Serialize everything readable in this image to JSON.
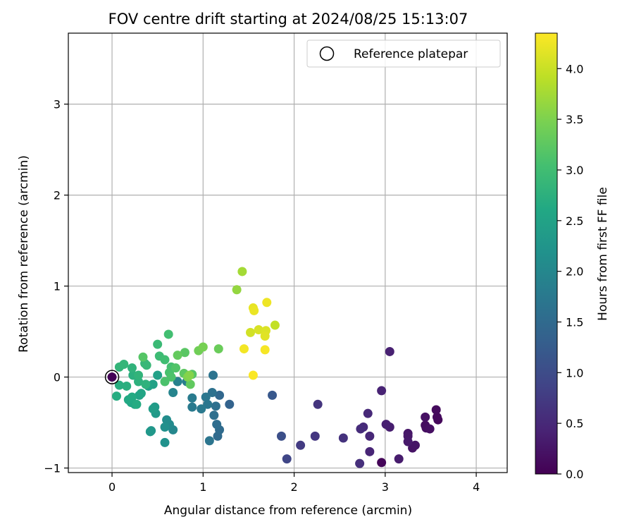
{
  "chart_data": {
    "type": "scatter",
    "title": "FOV centre drift starting at 2024/08/25 15:13:07",
    "xlabel": "Angular distance from reference (arcmin)",
    "ylabel": "Rotation from reference (arcmin)",
    "xlim": [
      -0.48,
      4.34
    ],
    "ylim": [
      -1.05,
      3.78
    ],
    "xticks": [
      0,
      1,
      2,
      3,
      4
    ],
    "yticks": [
      -1,
      0,
      1,
      2,
      3
    ],
    "xtick_labels": [
      "0",
      "1",
      "2",
      "3",
      "4"
    ],
    "ytick_labels": [
      "−1",
      "0",
      "1",
      "2",
      "3"
    ],
    "grid": true,
    "legend": {
      "placement": "top-right",
      "entries": [
        "Reference platepar"
      ]
    },
    "reference_point": {
      "x": 0,
      "y": 0,
      "marker": "open circle"
    },
    "colorbar": {
      "label": "Hours from first FF file",
      "colormap": "viridis",
      "range": [
        0.0,
        4.35
      ],
      "ticks": [
        0.0,
        0.5,
        1.0,
        1.5,
        2.0,
        2.5,
        3.0,
        3.5,
        4.0
      ],
      "tick_labels": [
        "0.0",
        "0.5",
        "1.0",
        "1.5",
        "2.0",
        "2.5",
        "3.0",
        "3.5",
        "4.0"
      ]
    },
    "points": [
      {
        "x": 0.0,
        "y": 0.0,
        "t": 0.02
      },
      {
        "x": 2.96,
        "y": -0.94,
        "t": 0.05
      },
      {
        "x": 3.58,
        "y": -0.47,
        "t": 0.08
      },
      {
        "x": 3.57,
        "y": -0.44,
        "t": 0.1
      },
      {
        "x": 3.56,
        "y": -0.36,
        "t": 0.12
      },
      {
        "x": 3.44,
        "y": -0.53,
        "t": 0.15
      },
      {
        "x": 3.45,
        "y": -0.56,
        "t": 0.16
      },
      {
        "x": 3.49,
        "y": -0.57,
        "t": 0.18
      },
      {
        "x": 3.44,
        "y": -0.44,
        "t": 0.2
      },
      {
        "x": 3.3,
        "y": -0.78,
        "t": 0.22
      },
      {
        "x": 3.33,
        "y": -0.75,
        "t": 0.24
      },
      {
        "x": 3.25,
        "y": -0.62,
        "t": 0.26
      },
      {
        "x": 3.25,
        "y": -0.65,
        "t": 0.28
      },
      {
        "x": 3.25,
        "y": -0.71,
        "t": 0.3
      },
      {
        "x": 3.15,
        "y": -0.9,
        "t": 0.33
      },
      {
        "x": 3.05,
        "y": -0.55,
        "t": 0.36
      },
      {
        "x": 3.01,
        "y": -0.52,
        "t": 0.38
      },
      {
        "x": 3.05,
        "y": 0.28,
        "t": 0.4
      },
      {
        "x": 2.96,
        "y": -0.15,
        "t": 0.42
      },
      {
        "x": 2.83,
        "y": -0.82,
        "t": 0.45
      },
      {
        "x": 2.83,
        "y": -0.65,
        "t": 0.48
      },
      {
        "x": 2.81,
        "y": -0.4,
        "t": 0.5
      },
      {
        "x": 2.76,
        "y": -0.55,
        "t": 0.52
      },
      {
        "x": 2.73,
        "y": -0.57,
        "t": 0.55
      },
      {
        "x": 2.72,
        "y": -0.95,
        "t": 0.58
      },
      {
        "x": 2.54,
        "y": -0.67,
        "t": 0.62
      },
      {
        "x": 2.26,
        "y": -0.3,
        "t": 0.66
      },
      {
        "x": 2.23,
        "y": -0.65,
        "t": 0.7
      },
      {
        "x": 2.07,
        "y": -0.75,
        "t": 0.75
      },
      {
        "x": 1.92,
        "y": -0.9,
        "t": 0.9
      },
      {
        "x": 1.86,
        "y": -0.65,
        "t": 1.05
      },
      {
        "x": 1.76,
        "y": -0.2,
        "t": 1.2
      },
      {
        "x": 1.29,
        "y": -0.3,
        "t": 1.38
      },
      {
        "x": 1.18,
        "y": -0.2,
        "t": 1.45
      },
      {
        "x": 1.16,
        "y": -0.65,
        "t": 1.5
      },
      {
        "x": 1.18,
        "y": -0.58,
        "t": 1.52
      },
      {
        "x": 1.15,
        "y": -0.52,
        "t": 1.55
      },
      {
        "x": 1.12,
        "y": -0.42,
        "t": 1.58
      },
      {
        "x": 1.14,
        "y": -0.32,
        "t": 1.6
      },
      {
        "x": 1.1,
        "y": -0.17,
        "t": 1.62
      },
      {
        "x": 1.11,
        "y": 0.02,
        "t": 1.65
      },
      {
        "x": 1.07,
        "y": -0.7,
        "t": 1.68
      },
      {
        "x": 1.05,
        "y": -0.3,
        "t": 1.7
      },
      {
        "x": 1.03,
        "y": -0.22,
        "t": 1.72
      },
      {
        "x": 0.98,
        "y": -0.35,
        "t": 1.75
      },
      {
        "x": 0.88,
        "y": -0.33,
        "t": 1.78
      },
      {
        "x": 0.88,
        "y": -0.23,
        "t": 1.8
      },
      {
        "x": 0.82,
        "y": -0.05,
        "t": 1.85
      },
      {
        "x": 0.72,
        "y": -0.05,
        "t": 1.9
      },
      {
        "x": 0.67,
        "y": -0.17,
        "t": 1.95
      },
      {
        "x": 0.67,
        "y": -0.58,
        "t": 2.0
      },
      {
        "x": 0.63,
        "y": -0.52,
        "t": 2.05
      },
      {
        "x": 0.6,
        "y": -0.47,
        "t": 2.1
      },
      {
        "x": 0.58,
        "y": -0.55,
        "t": 2.15
      },
      {
        "x": 0.58,
        "y": -0.72,
        "t": 2.2
      },
      {
        "x": 0.43,
        "y": -0.59,
        "t": 2.25
      },
      {
        "x": 0.42,
        "y": -0.6,
        "t": 2.3
      },
      {
        "x": 0.48,
        "y": -0.4,
        "t": 2.33
      },
      {
        "x": 0.47,
        "y": -0.33,
        "t": 2.36
      },
      {
        "x": 0.45,
        "y": -0.35,
        "t": 2.4
      },
      {
        "x": 0.5,
        "y": 0.02,
        "t": 2.45
      },
      {
        "x": 0.45,
        "y": -0.08,
        "t": 2.48
      },
      {
        "x": 0.4,
        "y": -0.1,
        "t": 2.5
      },
      {
        "x": 0.3,
        "y": -0.2,
        "t": 2.52
      },
      {
        "x": 0.32,
        "y": -0.18,
        "t": 2.55
      },
      {
        "x": 0.25,
        "y": -0.3,
        "t": 2.58
      },
      {
        "x": 0.21,
        "y": -0.28,
        "t": 2.6
      },
      {
        "x": 0.18,
        "y": -0.25,
        "t": 2.62
      },
      {
        "x": 0.22,
        "y": -0.22,
        "t": 2.64
      },
      {
        "x": 0.27,
        "y": -0.3,
        "t": 2.66
      },
      {
        "x": 0.05,
        "y": -0.21,
        "t": 2.68
      },
      {
        "x": 0.08,
        "y": -0.09,
        "t": 2.7
      },
      {
        "x": 0.16,
        "y": -0.1,
        "t": 2.72
      },
      {
        "x": 0.23,
        "y": 0.02,
        "t": 2.74
      },
      {
        "x": 0.29,
        "y": -0.05,
        "t": 2.76
      },
      {
        "x": 0.37,
        "y": -0.08,
        "t": 2.78
      },
      {
        "x": 0.22,
        "y": 0.1,
        "t": 2.8
      },
      {
        "x": 0.29,
        "y": 0.02,
        "t": 2.82
      },
      {
        "x": 0.08,
        "y": 0.11,
        "t": 2.84
      },
      {
        "x": 0.13,
        "y": 0.14,
        "t": 2.86
      },
      {
        "x": 0.36,
        "y": 0.15,
        "t": 2.88
      },
      {
        "x": 0.38,
        "y": 0.13,
        "t": 2.9
      },
      {
        "x": 0.5,
        "y": 0.36,
        "t": 2.93
      },
      {
        "x": 0.52,
        "y": 0.23,
        "t": 2.96
      },
      {
        "x": 0.58,
        "y": 0.19,
        "t": 3.0
      },
      {
        "x": 0.62,
        "y": 0.47,
        "t": 3.02
      },
      {
        "x": 0.65,
        "y": 0.11,
        "t": 3.05
      },
      {
        "x": 0.63,
        "y": 0.05,
        "t": 3.08
      },
      {
        "x": 0.58,
        "y": -0.05,
        "t": 3.1
      },
      {
        "x": 0.65,
        "y": 0.0,
        "t": 3.12
      },
      {
        "x": 0.7,
        "y": 0.1,
        "t": 3.15
      },
      {
        "x": 0.34,
        "y": 0.22,
        "t": 3.18
      },
      {
        "x": 0.88,
        "y": 0.03,
        "t": 3.2
      },
      {
        "x": 0.8,
        "y": 0.27,
        "t": 3.22
      },
      {
        "x": 0.79,
        "y": 0.04,
        "t": 3.25
      },
      {
        "x": 0.86,
        "y": -0.08,
        "t": 3.28
      },
      {
        "x": 0.72,
        "y": 0.24,
        "t": 3.3
      },
      {
        "x": 1.17,
        "y": 0.31,
        "t": 3.35
      },
      {
        "x": 0.95,
        "y": 0.29,
        "t": 3.4
      },
      {
        "x": 1.0,
        "y": 0.33,
        "t": 3.45
      },
      {
        "x": 0.83,
        "y": 0.0,
        "t": 3.5
      },
      {
        "x": 0.85,
        "y": 0.02,
        "t": 3.55
      },
      {
        "x": 1.37,
        "y": 0.96,
        "t": 3.65
      },
      {
        "x": 1.43,
        "y": 1.16,
        "t": 3.75
      },
      {
        "x": 1.79,
        "y": 0.57,
        "t": 3.95
      },
      {
        "x": 1.52,
        "y": 0.49,
        "t": 4.05
      },
      {
        "x": 1.61,
        "y": 0.52,
        "t": 4.1
      },
      {
        "x": 1.69,
        "y": 0.51,
        "t": 4.12
      },
      {
        "x": 1.68,
        "y": 0.45,
        "t": 4.15
      },
      {
        "x": 1.55,
        "y": 0.76,
        "t": 4.2
      },
      {
        "x": 1.56,
        "y": 0.73,
        "t": 4.22
      },
      {
        "x": 1.7,
        "y": 0.82,
        "t": 4.25
      },
      {
        "x": 1.45,
        "y": 0.31,
        "t": 4.28
      },
      {
        "x": 1.68,
        "y": 0.3,
        "t": 4.3
      },
      {
        "x": 1.55,
        "y": 0.02,
        "t": 4.33
      }
    ]
  }
}
